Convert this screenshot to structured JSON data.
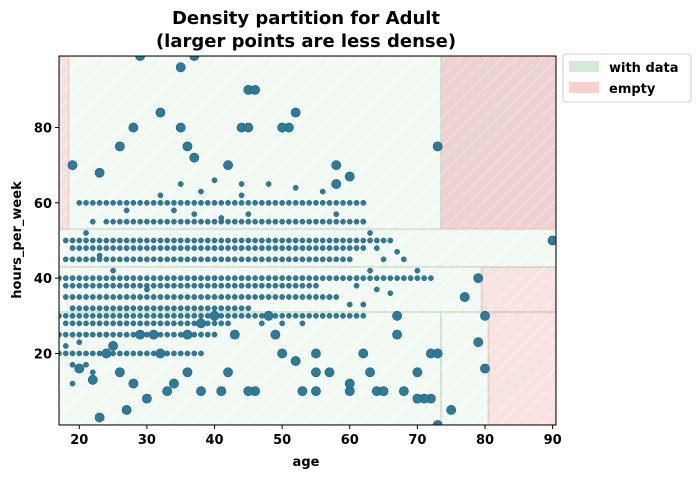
{
  "chart_data": {
    "type": "scatter",
    "title": "Density partition for Adult",
    "subtitle": "(larger points are less dense)",
    "xlabel": "age",
    "ylabel": "hours_per_week",
    "xlim": [
      17,
      90.5
    ],
    "ylim": [
      1,
      99
    ],
    "xticks": [
      20,
      30,
      40,
      50,
      60,
      70,
      80,
      90
    ],
    "yticks": [
      20,
      40,
      60,
      80
    ],
    "legend": {
      "placement": "outside-top-right",
      "entries": [
        {
          "label": "with data",
          "color": "#d5ead5"
        },
        {
          "label": "empty",
          "color": "#f8d0cc"
        }
      ]
    },
    "colors": {
      "point": "#2e7a9a",
      "point_edge": "#1f5f78",
      "with_data": "#e4f3e4",
      "empty": "#f6dad7"
    },
    "regions": [
      {
        "kind": "with data",
        "x": [
          17,
          73.5
        ],
        "y": [
          1,
          31
        ]
      },
      {
        "kind": "with data",
        "x": [
          73.5,
          80.5
        ],
        "y": [
          1,
          31
        ]
      },
      {
        "kind": "with data",
        "x": [
          17,
          79.5
        ],
        "y": [
          31,
          43
        ]
      },
      {
        "kind": "with data",
        "x": [
          17,
          90.5
        ],
        "y": [
          43,
          53
        ]
      },
      {
        "kind": "with data",
        "x": [
          17,
          73.5
        ],
        "y": [
          53,
          99
        ]
      },
      {
        "kind": "empty",
        "x": [
          73.5,
          90.5
        ],
        "y": [
          53,
          99
        ]
      },
      {
        "kind": "empty",
        "x": [
          79.5,
          90.5
        ],
        "y": [
          31,
          43
        ]
      },
      {
        "kind": "empty",
        "x": [
          80.5,
          90.5
        ],
        "y": [
          1,
          31
        ]
      },
      {
        "kind": "empty",
        "x": [
          17,
          18.5
        ],
        "y": [
          53,
          99
        ]
      }
    ],
    "points_large": [
      [
        29,
        99
      ],
      [
        35,
        96
      ],
      [
        37,
        99
      ],
      [
        32,
        84
      ],
      [
        35,
        80
      ],
      [
        45,
        90
      ],
      [
        46,
        90
      ],
      [
        52,
        84
      ],
      [
        51,
        80
      ],
      [
        50,
        80
      ],
      [
        44,
        80
      ],
      [
        45,
        80
      ],
      [
        28,
        80
      ],
      [
        26,
        75
      ],
      [
        36,
        75
      ],
      [
        37,
        72
      ],
      [
        42,
        70
      ],
      [
        19,
        70
      ],
      [
        23,
        68
      ],
      [
        58,
        70
      ],
      [
        60,
        67
      ],
      [
        58,
        65
      ],
      [
        73,
        75
      ],
      [
        90,
        50
      ],
      [
        80,
        30
      ],
      [
        77,
        35
      ],
      [
        79,
        40
      ],
      [
        67,
        30
      ],
      [
        79,
        23
      ],
      [
        80,
        16
      ],
      [
        75,
        5
      ],
      [
        73,
        1
      ],
      [
        72,
        8
      ],
      [
        72,
        20
      ],
      [
        73,
        20
      ],
      [
        70,
        15
      ],
      [
        71,
        8
      ],
      [
        68,
        10
      ],
      [
        64,
        10
      ],
      [
        60,
        10
      ],
      [
        55,
        10
      ],
      [
        53,
        10
      ],
      [
        46,
        10
      ],
      [
        45,
        10
      ],
      [
        41,
        10
      ],
      [
        38,
        10
      ],
      [
        33,
        10
      ],
      [
        30,
        8
      ],
      [
        27,
        5
      ],
      [
        23,
        3
      ],
      [
        28,
        12
      ],
      [
        34,
        12
      ],
      [
        26,
        15
      ],
      [
        22,
        13
      ],
      [
        20,
        16
      ],
      [
        36,
        15
      ],
      [
        42,
        15
      ],
      [
        55,
        15
      ],
      [
        60,
        12
      ],
      [
        65,
        10
      ],
      [
        48,
        30
      ],
      [
        62,
        20
      ],
      [
        67,
        25
      ],
      [
        55,
        20
      ],
      [
        52,
        18
      ],
      [
        50,
        20
      ],
      [
        49,
        25
      ],
      [
        43,
        25
      ],
      [
        40,
        30
      ],
      [
        38,
        28
      ],
      [
        36,
        25
      ],
      [
        32,
        20
      ],
      [
        29,
        25
      ],
      [
        31,
        25
      ],
      [
        25,
        22
      ],
      [
        24,
        20
      ],
      [
        57,
        15
      ],
      [
        63,
        15
      ],
      [
        70,
        8
      ]
    ],
    "bands_small": [
      {
        "y": 60,
        "ranges": [
          [
            20,
            62
          ]
        ]
      },
      {
        "y": 55,
        "ranges": [
          [
            24,
            62
          ]
        ]
      },
      {
        "y": 50,
        "ranges": [
          [
            18,
            65
          ]
        ]
      },
      {
        "y": 48,
        "ranges": [
          [
            19,
            62
          ]
        ]
      },
      {
        "y": 45,
        "ranges": [
          [
            18,
            60
          ]
        ]
      },
      {
        "y": 40,
        "ranges": [
          [
            17,
            72
          ]
        ]
      },
      {
        "y": 38,
        "ranges": [
          [
            18,
            55
          ]
        ]
      },
      {
        "y": 35,
        "ranges": [
          [
            18,
            58
          ]
        ]
      },
      {
        "y": 32,
        "ranges": [
          [
            19,
            45
          ]
        ]
      },
      {
        "y": 30,
        "ranges": [
          [
            17,
            62
          ]
        ]
      },
      {
        "y": 28,
        "ranges": [
          [
            18,
            42
          ]
        ]
      },
      {
        "y": 25,
        "ranges": [
          [
            17,
            40
          ]
        ]
      },
      {
        "y": 20,
        "ranges": [
          [
            17,
            38
          ]
        ]
      }
    ],
    "points_small": [
      [
        58,
        57
      ],
      [
        62,
        55
      ],
      [
        63,
        52
      ],
      [
        64,
        48
      ],
      [
        66,
        50
      ],
      [
        67,
        47
      ],
      [
        68,
        45
      ],
      [
        70,
        42
      ],
      [
        65,
        45
      ],
      [
        63,
        42
      ],
      [
        62,
        33
      ],
      [
        60,
        33
      ],
      [
        57,
        35
      ],
      [
        61,
        38
      ],
      [
        64,
        37
      ],
      [
        66,
        36
      ],
      [
        56,
        30
      ],
      [
        53,
        28
      ],
      [
        50,
        28
      ],
      [
        47,
        28
      ],
      [
        19,
        17
      ],
      [
        21,
        17
      ],
      [
        22,
        15
      ],
      [
        20,
        23
      ],
      [
        18,
        22
      ],
      [
        19,
        12
      ],
      [
        24,
        25
      ],
      [
        26,
        28
      ],
      [
        27,
        32
      ],
      [
        29,
        35
      ],
      [
        30,
        37
      ],
      [
        25,
        42
      ],
      [
        23,
        46
      ],
      [
        21,
        52
      ],
      [
        22,
        55
      ],
      [
        27,
        58
      ],
      [
        32,
        62
      ],
      [
        35,
        65
      ],
      [
        38,
        63
      ],
      [
        40,
        66
      ],
      [
        44,
        65
      ],
      [
        48,
        65
      ],
      [
        52,
        64
      ],
      [
        44,
        62
      ],
      [
        56,
        63
      ],
      [
        34,
        58
      ],
      [
        37,
        57
      ],
      [
        41,
        56
      ],
      [
        45,
        57
      ]
    ]
  }
}
